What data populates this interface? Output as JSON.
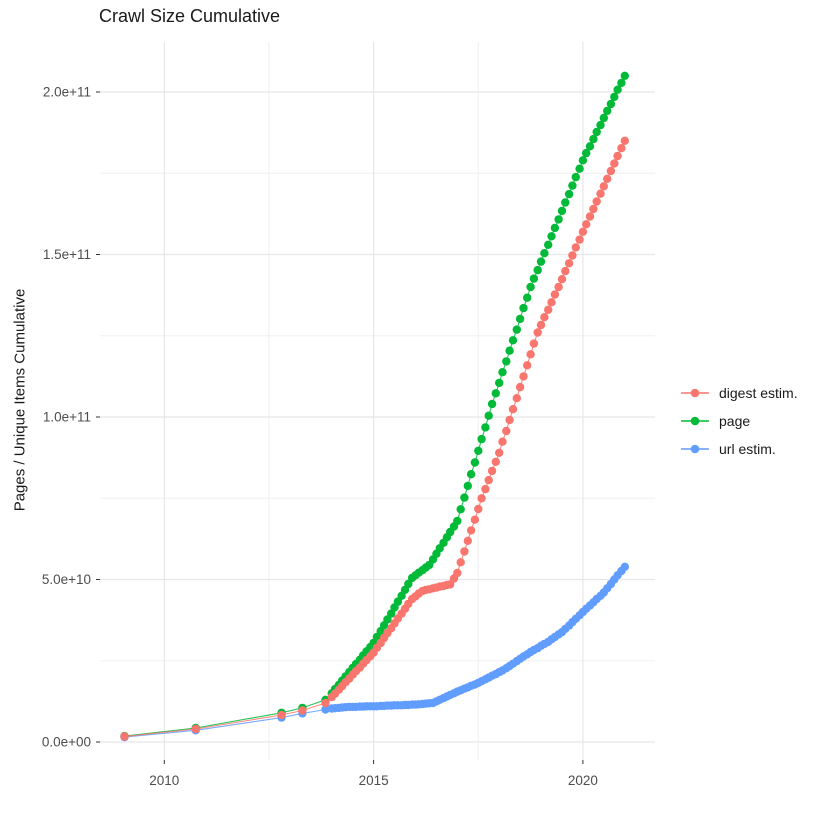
{
  "chart_data": {
    "type": "scatter",
    "title": "Crawl Size Cumulative",
    "xlabel": "",
    "ylabel": "Pages / Unique Items Cumulative",
    "legend_position": "right",
    "grid": true,
    "values_unit": "1e9 (value 50 means 5.0e+10)",
    "xlim": [
      2008.5,
      2021.75
    ],
    "ylim": [
      0,
      212
    ],
    "x_ticks": [
      {
        "label": "2010",
        "year": 2010
      },
      {
        "label": "2015",
        "year": 2015
      },
      {
        "label": "2020",
        "year": 2020
      }
    ],
    "x_minor_gridlines": [
      2012.5,
      2017.5
    ],
    "y_ticks": [
      {
        "label": "0.0e+00",
        "value": 0
      },
      {
        "label": "5.0e+10",
        "value": 50
      },
      {
        "label": "1.0e+11",
        "value": 100
      },
      {
        "label": "1.5e+11",
        "value": 150
      },
      {
        "label": "2.0e+11",
        "value": 200
      }
    ],
    "y_minor_gridlines": [
      25,
      75,
      125,
      175
    ],
    "x": [
      2009.05,
      2010.75,
      2012.8,
      2013.3,
      2013.85,
      2014.0,
      2014.08,
      2014.17,
      2014.25,
      2014.33,
      2014.42,
      2014.5,
      2014.58,
      2014.67,
      2014.75,
      2014.83,
      2014.92,
      2015.0,
      2015.08,
      2015.17,
      2015.25,
      2015.33,
      2015.42,
      2015.5,
      2015.58,
      2015.67,
      2015.75,
      2015.83,
      2015.92,
      2016.0,
      2016.08,
      2016.17,
      2016.25,
      2016.33,
      2016.42,
      2016.5,
      2016.58,
      2016.67,
      2016.75,
      2016.83,
      2016.92,
      2017.0,
      2017.08,
      2017.17,
      2017.25,
      2017.33,
      2017.42,
      2017.5,
      2017.58,
      2017.67,
      2017.75,
      2017.83,
      2017.92,
      2018.0,
      2018.08,
      2018.17,
      2018.25,
      2018.33,
      2018.42,
      2018.5,
      2018.58,
      2018.67,
      2018.75,
      2018.83,
      2018.92,
      2019.0,
      2019.08,
      2019.17,
      2019.25,
      2019.33,
      2019.42,
      2019.5,
      2019.58,
      2019.67,
      2019.75,
      2019.83,
      2019.92,
      2020.0,
      2020.08,
      2020.17,
      2020.25,
      2020.33,
      2020.42,
      2020.5,
      2020.58,
      2020.67,
      2020.75,
      2020.83,
      2020.92,
      2021.0
    ],
    "series": [
      {
        "name": "digest estim.",
        "color": "#F8766D",
        "values": [
          1.7,
          4.0,
          8.3,
          9.7,
          12.0,
          13.8,
          14.9,
          16.1,
          17.2,
          18.4,
          19.5,
          20.7,
          21.8,
          22.9,
          24.1,
          25.2,
          26.4,
          27.5,
          29.0,
          30.5,
          32.0,
          33.5,
          35.0,
          36.5,
          38.0,
          39.5,
          41.0,
          42.5,
          44.0,
          44.8,
          45.7,
          46.5,
          46.8,
          47.0,
          47.3,
          47.5,
          47.8,
          48.0,
          48.3,
          48.5,
          50.3,
          52.0,
          55.3,
          58.6,
          61.9,
          65.1,
          68.4,
          71.7,
          75.0,
          77.8,
          80.6,
          83.4,
          86.2,
          89.0,
          92.4,
          95.7,
          99.1,
          102.4,
          105.8,
          109.2,
          112.5,
          115.9,
          119.3,
          122.6,
          126.0,
          128.3,
          130.7,
          133.0,
          135.3,
          137.7,
          140.0,
          142.4,
          144.9,
          147.3,
          149.7,
          152.2,
          154.6,
          157.0,
          159.3,
          161.7,
          164.0,
          166.3,
          168.7,
          171.0,
          173.3,
          175.7,
          178.0,
          180.3,
          182.7,
          185.0
        ]
      },
      {
        "name": "page",
        "color": "#00BA38",
        "values": [
          1.8,
          4.3,
          9.0,
          10.5,
          13.0,
          15.0,
          16.3,
          17.6,
          18.9,
          20.2,
          21.5,
          22.8,
          24.0,
          25.3,
          26.6,
          27.9,
          29.2,
          30.5,
          32.3,
          34.1,
          35.9,
          37.7,
          39.5,
          41.4,
          43.2,
          45.0,
          46.8,
          48.6,
          50.5,
          51.3,
          52.1,
          52.9,
          53.7,
          54.5,
          56.2,
          57.9,
          59.6,
          61.3,
          63.0,
          64.6,
          66.3,
          68.0,
          71.6,
          75.2,
          78.8,
          82.4,
          86.0,
          89.6,
          93.2,
          96.8,
          100.4,
          104.0,
          107.3,
          110.5,
          113.8,
          117.1,
          120.4,
          123.6,
          126.9,
          130.2,
          133.5,
          136.7,
          140.0,
          142.6,
          145.2,
          147.8,
          150.4,
          153.0,
          155.6,
          158.2,
          160.8,
          163.4,
          166.0,
          168.6,
          171.2,
          173.8,
          176.4,
          179.0,
          181.2,
          183.3,
          185.5,
          187.7,
          189.8,
          192.0,
          194.2,
          196.3,
          198.5,
          200.7,
          202.8,
          205.0
        ]
      },
      {
        "name": "url estim.",
        "color": "#619CFF",
        "values": [
          1.5,
          3.6,
          7.5,
          8.8,
          10.0,
          10.3,
          10.4,
          10.5,
          10.6,
          10.7,
          10.8,
          10.8,
          10.8,
          10.9,
          10.9,
          11.0,
          11.0,
          11.0,
          11.0,
          11.1,
          11.1,
          11.2,
          11.2,
          11.3,
          11.3,
          11.3,
          11.4,
          11.4,
          11.5,
          11.5,
          11.6,
          11.7,
          11.8,
          11.9,
          12.0,
          12.5,
          13.0,
          13.5,
          14.0,
          14.5,
          15.0,
          15.5,
          15.9,
          16.4,
          16.8,
          17.3,
          17.7,
          18.2,
          18.7,
          19.3,
          19.8,
          20.4,
          20.9,
          21.5,
          22.0,
          22.7,
          23.4,
          24.1,
          24.9,
          25.6,
          26.3,
          27.0,
          27.7,
          28.3,
          28.9,
          29.6,
          30.2,
          30.8,
          31.6,
          32.3,
          33.1,
          33.8,
          34.8,
          35.8,
          36.9,
          37.9,
          39.0,
          40.0,
          41.0,
          42.0,
          43.0,
          44.0,
          45.0,
          46.0,
          47.3,
          48.6,
          50.0,
          51.3,
          52.6,
          53.9
        ]
      }
    ]
  }
}
